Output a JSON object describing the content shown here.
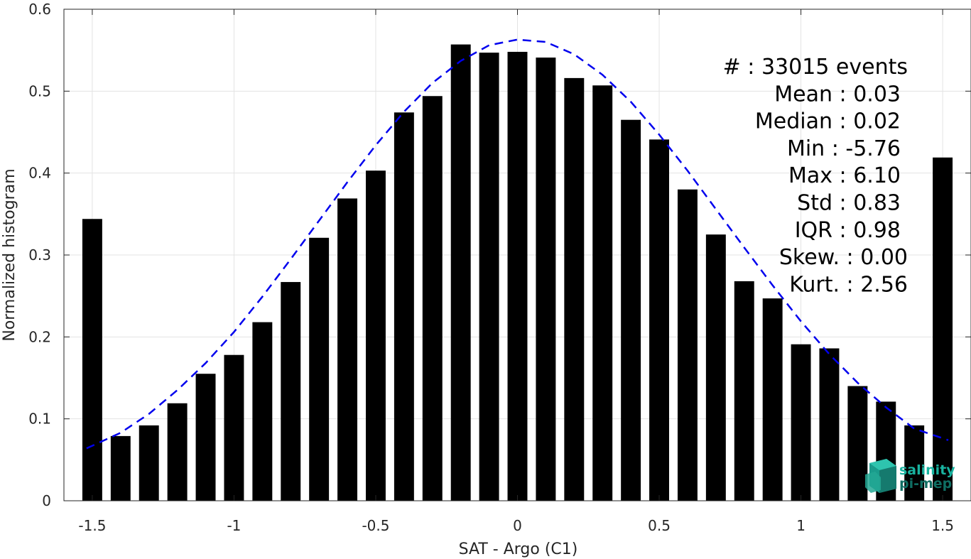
{
  "chart_data": {
    "type": "bar",
    "xlabel": "SAT - Argo (C1)",
    "ylabel": "Normalized histogram",
    "xlim": [
      -1.6,
      1.6
    ],
    "ylim": [
      0,
      0.6
    ],
    "xticks": [
      -1.5,
      -1,
      -0.5,
      0,
      0.5,
      1,
      1.5
    ],
    "xtick_labels": [
      "-1.5",
      "-1",
      "-0.5",
      "0",
      "0.5",
      "1",
      "1.5"
    ],
    "yticks": [
      0,
      0.1,
      0.2,
      0.3,
      0.4,
      0.5,
      0.6
    ],
    "ytick_labels": [
      "0",
      "0.1",
      "0.2",
      "0.3",
      "0.4",
      "0.5",
      "0.6"
    ],
    "grid": true,
    "bar_color": "#000000",
    "bar_width": 0.07,
    "bars": {
      "x": [
        -1.5,
        -1.4,
        -1.3,
        -1.2,
        -1.1,
        -1.0,
        -0.9,
        -0.8,
        -0.7,
        -0.6,
        -0.5,
        -0.4,
        -0.3,
        -0.2,
        -0.1,
        0.0,
        0.1,
        0.2,
        0.3,
        0.4,
        0.5,
        0.6,
        0.7,
        0.8,
        0.9,
        1.0,
        1.1,
        1.2,
        1.3,
        1.4,
        1.5
      ],
      "values": [
        0.344,
        0.079,
        0.092,
        0.119,
        0.155,
        0.178,
        0.218,
        0.267,
        0.321,
        0.369,
        0.403,
        0.474,
        0.494,
        0.557,
        0.547,
        0.548,
        0.541,
        0.516,
        0.507,
        0.465,
        0.441,
        0.38,
        0.325,
        0.268,
        0.247,
        0.191,
        0.186,
        0.14,
        0.121,
        0.092,
        0.419
      ]
    },
    "fit_curve": {
      "style": "dashed",
      "color": "#0000ee",
      "x": [
        -1.52,
        -1.4,
        -1.3,
        -1.2,
        -1.1,
        -1.0,
        -0.9,
        -0.8,
        -0.7,
        -0.6,
        -0.5,
        -0.4,
        -0.3,
        -0.2,
        -0.1,
        0.0,
        0.1,
        0.2,
        0.3,
        0.4,
        0.5,
        0.6,
        0.7,
        0.8,
        0.9,
        1.0,
        1.1,
        1.2,
        1.3,
        1.4,
        1.52
      ],
      "y": [
        0.064,
        0.083,
        0.106,
        0.135,
        0.168,
        0.206,
        0.249,
        0.295,
        0.342,
        0.389,
        0.434,
        0.475,
        0.51,
        0.537,
        0.556,
        0.563,
        0.56,
        0.545,
        0.52,
        0.487,
        0.447,
        0.403,
        0.356,
        0.309,
        0.263,
        0.219,
        0.179,
        0.144,
        0.114,
        0.088,
        0.074
      ]
    },
    "annotations": [
      "#  : 33015 events",
      "Mean : 0.03",
      "Median : 0.02",
      "Min : -5.76",
      "Max : 6.10",
      "Std : 0.83",
      "IQR : 0.98",
      "Skew. : 0.00",
      "Kurt. : 2.56"
    ]
  },
  "logo": {
    "line1": "salinity",
    "line2": "pi-mep",
    "color1": "#19b3a0",
    "color2": "#0f6e63"
  }
}
